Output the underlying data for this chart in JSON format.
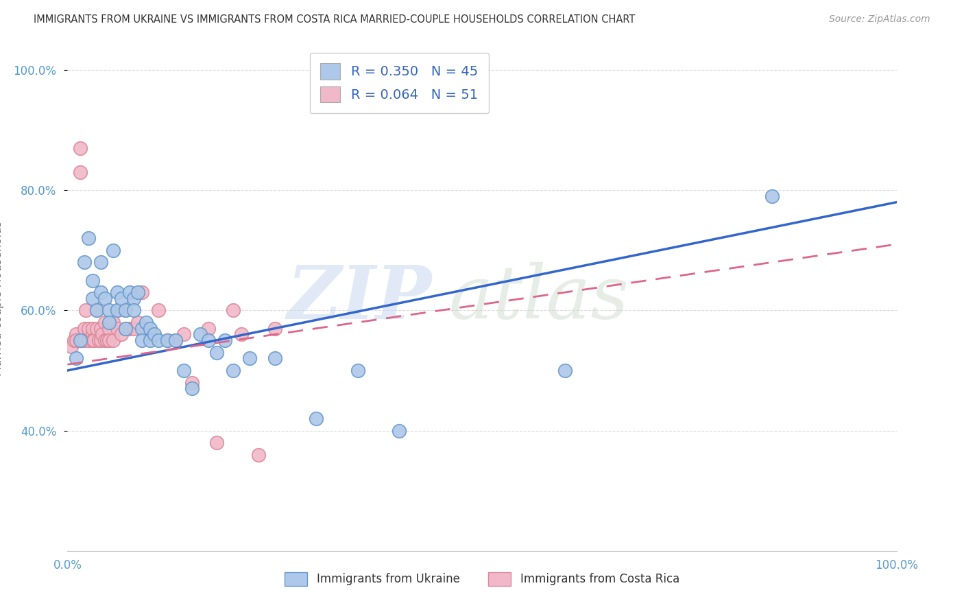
{
  "title": "IMMIGRANTS FROM UKRAINE VS IMMIGRANTS FROM COSTA RICA MARRIED-COUPLE HOUSEHOLDS CORRELATION CHART",
  "source": "Source: ZipAtlas.com",
  "ylabel": "Married-couple Households",
  "xmin": 0.0,
  "xmax": 1.0,
  "ymin": 0.2,
  "ymax": 1.04,
  "yticks": [
    0.4,
    0.6,
    0.8,
    1.0
  ],
  "ytick_labels": [
    "40.0%",
    "60.0%",
    "80.0%",
    "100.0%"
  ],
  "xtick_left": "0.0%",
  "xtick_right": "100.0%",
  "ukraine_R": 0.35,
  "ukraine_N": 45,
  "costarica_R": 0.064,
  "costarica_N": 51,
  "ukraine_color": "#adc8e8",
  "ukraine_edge": "#6699cc",
  "costarica_color": "#f0b8c8",
  "costarica_edge": "#dd8899",
  "ukraine_line_color": "#3366cc",
  "costarica_line_color": "#dd6688",
  "ukraine_scatter_x": [
    0.01,
    0.015,
    0.02,
    0.025,
    0.03,
    0.03,
    0.035,
    0.04,
    0.04,
    0.045,
    0.05,
    0.05,
    0.055,
    0.06,
    0.06,
    0.065,
    0.07,
    0.07,
    0.075,
    0.08,
    0.08,
    0.085,
    0.09,
    0.09,
    0.095,
    0.1,
    0.1,
    0.105,
    0.11,
    0.12,
    0.13,
    0.14,
    0.15,
    0.16,
    0.17,
    0.18,
    0.19,
    0.2,
    0.22,
    0.25,
    0.3,
    0.35,
    0.4,
    0.6,
    0.85
  ],
  "ukraine_scatter_y": [
    0.52,
    0.55,
    0.68,
    0.72,
    0.65,
    0.62,
    0.6,
    0.68,
    0.63,
    0.62,
    0.6,
    0.58,
    0.7,
    0.63,
    0.6,
    0.62,
    0.6,
    0.57,
    0.63,
    0.62,
    0.6,
    0.63,
    0.57,
    0.55,
    0.58,
    0.57,
    0.55,
    0.56,
    0.55,
    0.55,
    0.55,
    0.5,
    0.47,
    0.56,
    0.55,
    0.53,
    0.55,
    0.5,
    0.52,
    0.52,
    0.42,
    0.5,
    0.4,
    0.5,
    0.79
  ],
  "costarica_scatter_x": [
    0.005,
    0.008,
    0.01,
    0.01,
    0.015,
    0.015,
    0.018,
    0.02,
    0.02,
    0.022,
    0.025,
    0.025,
    0.03,
    0.03,
    0.03,
    0.032,
    0.035,
    0.035,
    0.038,
    0.04,
    0.04,
    0.042,
    0.045,
    0.045,
    0.048,
    0.05,
    0.05,
    0.055,
    0.055,
    0.06,
    0.06,
    0.065,
    0.07,
    0.07,
    0.075,
    0.08,
    0.085,
    0.09,
    0.095,
    0.1,
    0.11,
    0.12,
    0.13,
    0.14,
    0.15,
    0.17,
    0.18,
    0.2,
    0.21,
    0.23,
    0.25
  ],
  "costarica_scatter_y": [
    0.54,
    0.55,
    0.56,
    0.55,
    0.87,
    0.83,
    0.55,
    0.57,
    0.55,
    0.6,
    0.57,
    0.55,
    0.56,
    0.57,
    0.55,
    0.55,
    0.6,
    0.57,
    0.55,
    0.57,
    0.55,
    0.56,
    0.58,
    0.55,
    0.55,
    0.57,
    0.55,
    0.58,
    0.55,
    0.57,
    0.6,
    0.56,
    0.6,
    0.57,
    0.57,
    0.57,
    0.58,
    0.63,
    0.57,
    0.56,
    0.6,
    0.55,
    0.55,
    0.56,
    0.48,
    0.57,
    0.38,
    0.6,
    0.56,
    0.36,
    0.57
  ],
  "background_color": "#ffffff",
  "grid_color": "#cccccc"
}
